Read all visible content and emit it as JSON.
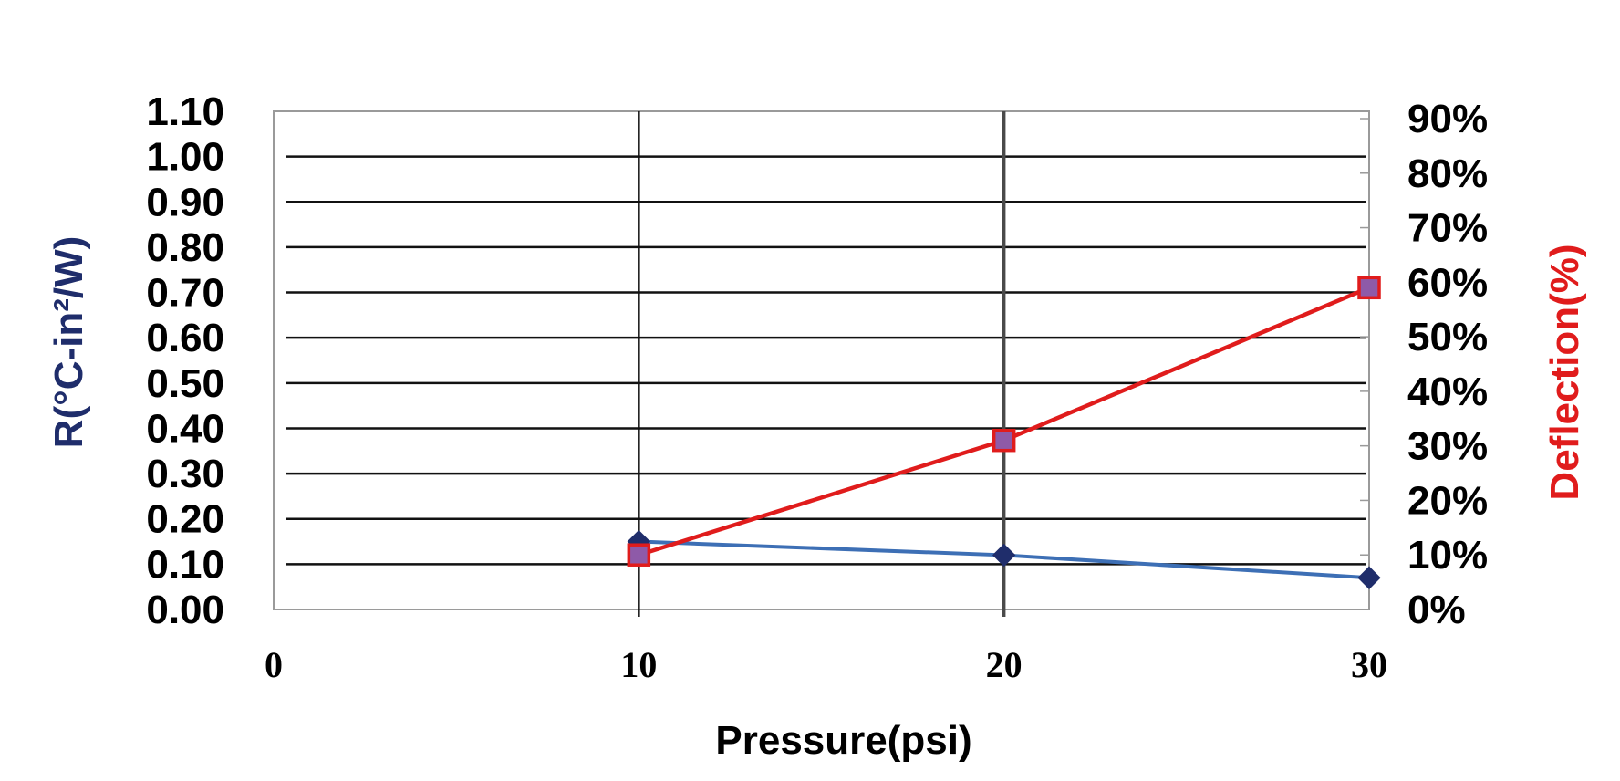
{
  "chart_data": {
    "type": "line",
    "title": "",
    "xlabel": "Pressure(psi)",
    "ylabel": "R(°C-in²/W)",
    "y2label": "Deflection(%)",
    "x_ticks": [
      "0",
      "10",
      "20",
      "30"
    ],
    "xlim": [
      0,
      30
    ],
    "ylim": [
      0,
      1.1
    ],
    "y_ticks": [
      "0.00",
      "0.10",
      "0.20",
      "0.30",
      "0.40",
      "0.50",
      "0.60",
      "0.70",
      "0.80",
      "0.90",
      "1.00",
      "1.10"
    ],
    "y2lim": [
      0,
      90
    ],
    "y2_ticks": [
      "0%",
      "10%",
      "20%",
      "30%",
      "40%",
      "50%",
      "60%",
      "70%",
      "80%",
      "90%"
    ],
    "grid": true,
    "legend": "none",
    "series": [
      {
        "axis": "left",
        "color": "#3d6fb5",
        "marker": "diamond",
        "marker_color": "#1f2d6b",
        "x": [
          10,
          20,
          30
        ],
        "values": [
          0.15,
          0.12,
          0.07
        ]
      },
      {
        "axis": "right",
        "color": "#e01c1c",
        "marker": "square",
        "marker_color": "#8e5aa8",
        "x": [
          10,
          20,
          30
        ],
        "values": [
          10,
          31,
          59
        ]
      }
    ],
    "colors": {
      "left_axis_title": "#1f2d6b",
      "right_axis_title": "#e01c1c",
      "x_axis_title": "#000000"
    }
  }
}
